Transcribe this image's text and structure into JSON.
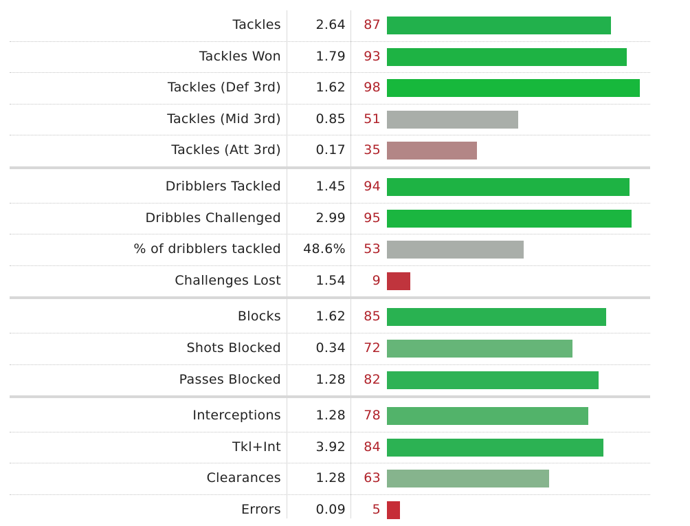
{
  "chart_data": {
    "type": "bar",
    "orientation": "horizontal",
    "xlim": [
      0,
      100
    ],
    "grid": false,
    "groups": [
      {
        "rows": [
          {
            "label": "Tackles",
            "value": "2.64",
            "percentile": 87,
            "color": "#22b14c"
          },
          {
            "label": "Tackles Won",
            "value": "1.79",
            "percentile": 93,
            "color": "#1eb344"
          },
          {
            "label": "Tackles (Def 3rd)",
            "value": "1.62",
            "percentile": 98,
            "color": "#17b83c"
          },
          {
            "label": "Tackles (Mid 3rd)",
            "value": "0.85",
            "percentile": 51,
            "color": "#a9aea9"
          },
          {
            "label": "Tackles (Att 3rd)",
            "value": "0.17",
            "percentile": 35,
            "color": "#b38686"
          }
        ]
      },
      {
        "rows": [
          {
            "label": "Dribblers Tackled",
            "value": "1.45",
            "percentile": 94,
            "color": "#1eb344"
          },
          {
            "label": "Dribbles Challenged",
            "value": "2.99",
            "percentile": 95,
            "color": "#1bb640"
          },
          {
            "label": "% of dribblers tackled",
            "value": "48.6%",
            "percentile": 53,
            "color": "#a9aea9"
          },
          {
            "label": "Challenges Lost",
            "value": "1.54",
            "percentile": 9,
            "color": "#c0343d"
          }
        ]
      },
      {
        "rows": [
          {
            "label": "Blocks",
            "value": "1.62",
            "percentile": 85,
            "color": "#29b251"
          },
          {
            "label": "Shots Blocked",
            "value": "0.34",
            "percentile": 72,
            "color": "#66b578"
          },
          {
            "label": "Passes Blocked",
            "value": "1.28",
            "percentile": 82,
            "color": "#2eb255"
          }
        ]
      },
      {
        "rows": [
          {
            "label": "Interceptions",
            "value": "1.28",
            "percentile": 78,
            "color": "#52b36a"
          },
          {
            "label": "Tkl+Int",
            "value": "3.92",
            "percentile": 84,
            "color": "#2cb253"
          },
          {
            "label": "Clearances",
            "value": "1.28",
            "percentile": 63,
            "color": "#86b48d"
          },
          {
            "label": "Errors",
            "value": "0.09",
            "percentile": 5,
            "color": "#c62d37"
          }
        ]
      }
    ]
  }
}
